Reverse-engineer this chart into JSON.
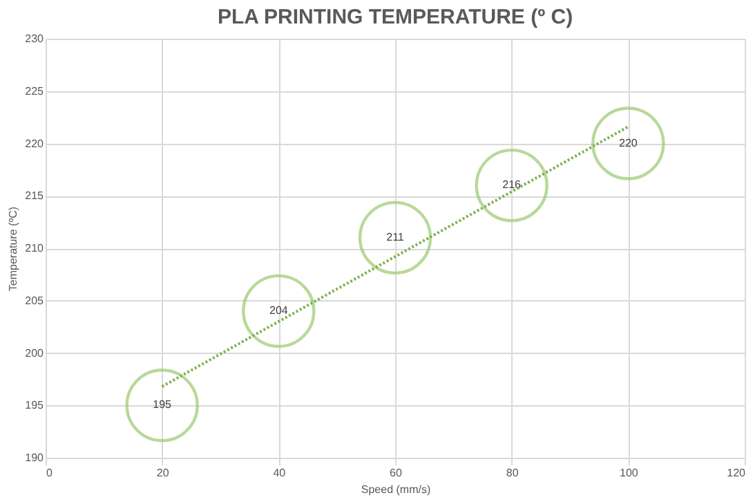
{
  "chart_data": {
    "type": "bubble",
    "title": "PLA PRINTING TEMPERATURE (º C)",
    "xlabel": "Speed (mm/s)",
    "ylabel": "Temperature (ºC)",
    "x": [
      20,
      40,
      60,
      80,
      100
    ],
    "series": [
      {
        "color": "#9bca6f",
        "values": [
          195,
          204,
          211,
          216,
          220
        ],
        "sizes": [
          1,
          1,
          1,
          1,
          1
        ],
        "value_labels": [
          "195",
          "204",
          "211",
          "216",
          "220"
        ]
      },
      {
        "type": "line",
        "color": "#7fb34e",
        "x": [
          20,
          100
        ],
        "values": [
          196.8,
          221.6
        ],
        "line_style": "dotted",
        "marker": "none"
      }
    ],
    "xlim": [
      0,
      120
    ],
    "xticks": [
      0,
      20,
      40,
      60,
      80,
      100,
      120
    ],
    "ylim": [
      190,
      230
    ],
    "yticks": [
      190,
      195,
      200,
      205,
      210,
      215,
      220,
      225,
      230
    ],
    "grid": true
  }
}
